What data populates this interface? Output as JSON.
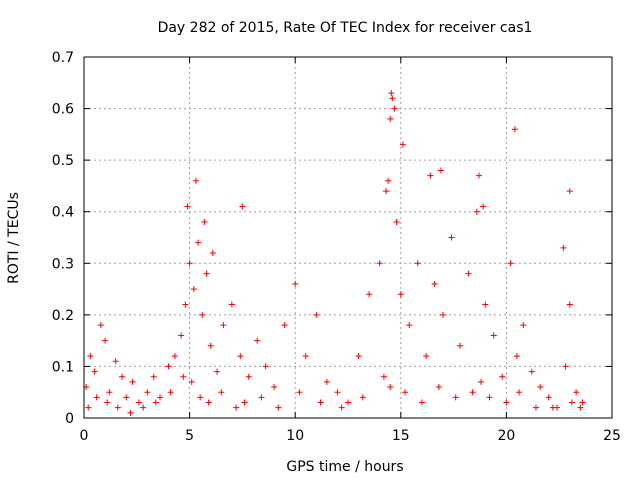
{
  "chart_data": {
    "type": "scatter",
    "title": "Day 282 of 2015, Rate Of TEC Index for receiver cas1",
    "xlabel": "GPS time / hours",
    "ylabel": "ROTI / TECUs",
    "xlim": [
      0,
      25
    ],
    "ylim": [
      0,
      0.7
    ],
    "xticks": [
      0,
      5,
      10,
      15,
      20,
      25
    ],
    "yticks": [
      0,
      0.1,
      0.2,
      0.3,
      0.4,
      0.5,
      0.6,
      0.7
    ],
    "grid": true,
    "marker": "+",
    "color": "#ff0000",
    "series": [
      {
        "x": [
          0.1,
          0.3,
          0.5,
          0.8,
          1.0,
          1.2,
          1.5,
          1.8,
          2.0,
          2.3,
          2.6,
          3.0,
          3.3,
          3.6,
          4.0,
          4.3,
          4.6,
          4.8,
          5.0,
          5.2,
          5.4,
          5.6,
          5.8,
          6.0,
          6.3,
          6.6,
          7.0,
          7.4,
          7.8,
          8.2,
          8.6,
          9.0,
          9.5,
          10.0,
          10.5,
          11.0,
          11.5,
          12.0,
          12.5,
          13.0,
          13.5,
          14.0,
          14.4,
          14.6,
          14.8,
          15.0,
          15.4,
          15.8,
          16.2,
          16.6,
          17.0,
          17.4,
          17.8,
          18.2,
          18.6,
          19.0,
          19.4,
          19.8,
          20.2,
          20.5,
          20.8,
          21.2,
          21.6,
          22.0,
          22.4,
          22.8,
          23.0,
          23.3,
          23.6,
          0.2,
          0.6,
          1.1,
          1.6,
          2.2,
          2.8,
          3.4,
          4.1,
          4.7,
          5.1,
          5.5,
          5.9,
          6.5,
          7.2,
          7.6,
          8.4,
          9.2,
          10.2,
          11.2,
          12.2,
          13.2,
          14.2,
          14.5,
          15.2,
          16.0,
          16.8,
          17.6,
          18.4,
          18.8,
          19.2,
          20.0,
          20.6,
          21.4,
          22.2,
          23.1,
          23.5,
          4.9,
          5.3,
          5.7,
          6.1,
          7.5,
          14.3,
          14.5,
          14.55,
          14.7,
          15.1,
          16.4,
          16.9,
          18.7,
          18.9,
          20.4,
          22.7,
          23.0
        ],
        "y": [
          0.06,
          0.12,
          0.09,
          0.18,
          0.15,
          0.05,
          0.11,
          0.08,
          0.04,
          0.07,
          0.03,
          0.05,
          0.08,
          0.04,
          0.1,
          0.12,
          0.16,
          0.22,
          0.3,
          0.25,
          0.34,
          0.2,
          0.28,
          0.14,
          0.09,
          0.18,
          0.22,
          0.12,
          0.08,
          0.15,
          0.1,
          0.06,
          0.18,
          0.26,
          0.12,
          0.2,
          0.07,
          0.05,
          0.03,
          0.12,
          0.24,
          0.3,
          0.46,
          0.62,
          0.38,
          0.24,
          0.18,
          0.3,
          0.12,
          0.26,
          0.2,
          0.35,
          0.14,
          0.28,
          0.4,
          0.22,
          0.16,
          0.08,
          0.3,
          0.12,
          0.18,
          0.09,
          0.06,
          0.04,
          0.02,
          0.1,
          0.22,
          0.05,
          0.03,
          0.02,
          0.04,
          0.03,
          0.02,
          0.01,
          0.02,
          0.03,
          0.05,
          0.08,
          0.07,
          0.04,
          0.03,
          0.05,
          0.02,
          0.03,
          0.04,
          0.02,
          0.05,
          0.03,
          0.02,
          0.04,
          0.08,
          0.06,
          0.05,
          0.03,
          0.06,
          0.04,
          0.05,
          0.07,
          0.04,
          0.03,
          0.05,
          0.02,
          0.02,
          0.03,
          0.02,
          0.41,
          0.46,
          0.38,
          0.32,
          0.41,
          0.44,
          0.58,
          0.63,
          0.6,
          0.53,
          0.47,
          0.48,
          0.47,
          0.41,
          0.56,
          0.33,
          0.44
        ]
      }
    ]
  }
}
